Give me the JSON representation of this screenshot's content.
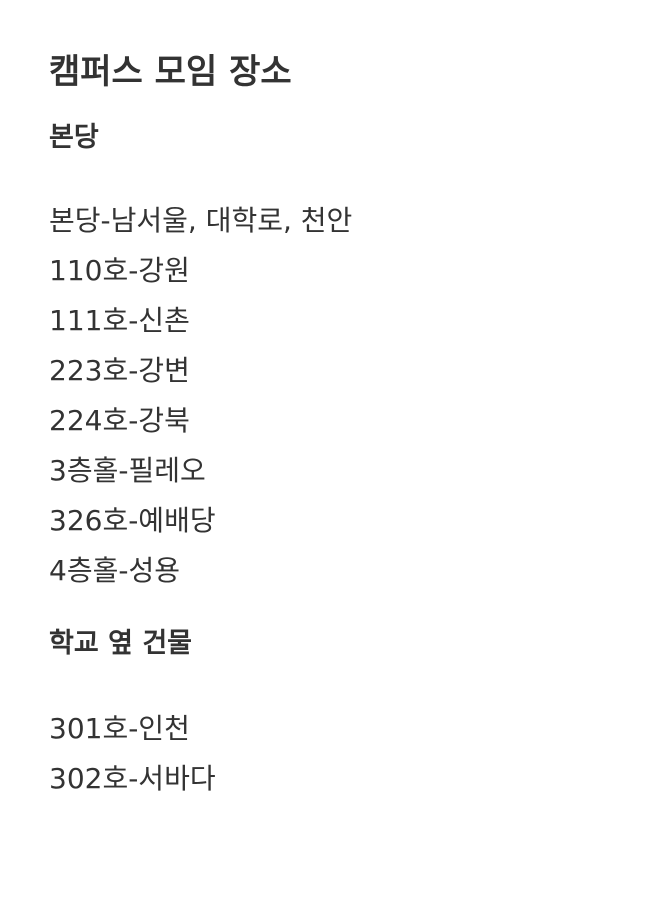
{
  "page": {
    "title": "캠퍼스 모임 장소"
  },
  "sections": [
    {
      "heading": "본당",
      "entries": [
        "본당-남서울, 대학로, 천안",
        "110호-강원",
        "111호-신촌",
        "223호-강변",
        "224호-강북",
        "3층홀-필레오",
        "326호-예배당",
        "4층홀-성용"
      ]
    },
    {
      "heading": "학교 옆 건물",
      "entries": [
        "301호-인천",
        "302호-서바다"
      ]
    }
  ]
}
